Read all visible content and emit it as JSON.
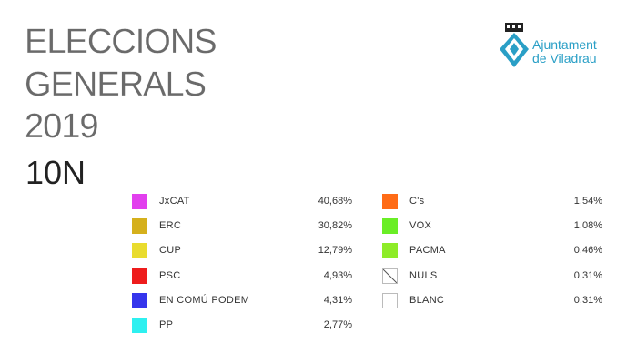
{
  "header": {
    "title_lines": [
      "ELECCIONS",
      "GENERALS",
      "2019"
    ],
    "subtitle": "10N"
  },
  "logo": {
    "lines": [
      "Ajuntament",
      "de Viladrau"
    ]
  },
  "results": {
    "columns": [
      [
        {
          "name": "JxCAT",
          "value": "40,68%",
          "color": "#e23fee"
        },
        {
          "name": "ERC",
          "value": "30,82%",
          "color": "#d5b01c"
        },
        {
          "name": "CUP",
          "value": "12,79%",
          "color": "#e9dc2e"
        },
        {
          "name": "PSC",
          "value": "4,93%",
          "color": "#ee1c1c"
        },
        {
          "name": "EN COMÚ PODEM",
          "value": "4,31%",
          "color": "#3535ec"
        },
        {
          "name": "PP",
          "value": "2,77%",
          "color": "#2ef0f0"
        }
      ],
      [
        {
          "name": "C's",
          "value": "1,54%",
          "color": "#ff6b16"
        },
        {
          "name": "VOX",
          "value": "1,08%",
          "color": "#6aee26"
        },
        {
          "name": "PACMA",
          "value": "0,46%",
          "color": "#8eec28"
        },
        {
          "name": "NULS",
          "value": "0,31%",
          "color": "#ffffff",
          "hatch": true
        },
        {
          "name": "BLANC",
          "value": "0,31%",
          "color": "#ffffff"
        }
      ]
    ]
  }
}
